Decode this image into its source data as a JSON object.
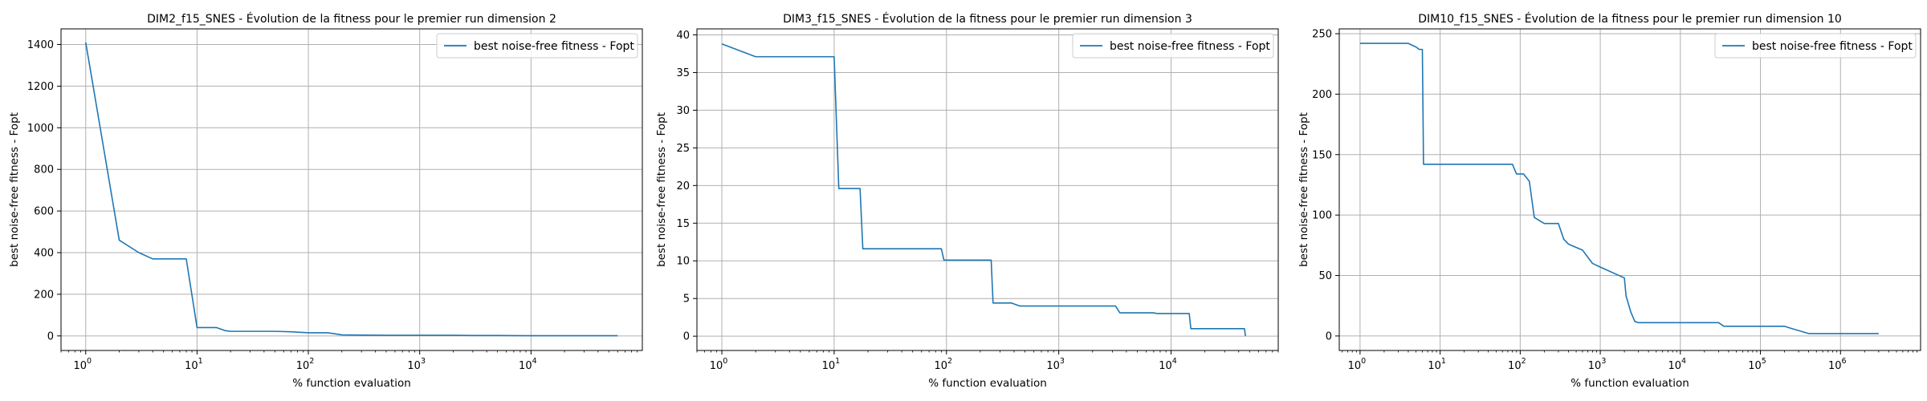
{
  "chart_data": [
    {
      "type": "line",
      "title": "DIM2_f15_SNES - Évolution de la fitness pour le premier run dimension 2",
      "xlabel": "% function evaluation",
      "ylabel": "best noise-free fitness - Fopt",
      "xscale": "log",
      "xlim": [
        0.6,
        100000
      ],
      "ylim": [
        -70,
        1475
      ],
      "xticks": [
        {
          "value": 1,
          "label": "10",
          "exp": "0"
        },
        {
          "value": 10,
          "label": "10",
          "exp": "1"
        },
        {
          "value": 100,
          "label": "10",
          "exp": "2"
        },
        {
          "value": 1000,
          "label": "10",
          "exp": "3"
        },
        {
          "value": 10000,
          "label": "10",
          "exp": "4"
        }
      ],
      "yticks": [
        {
          "value": 0,
          "label": "0"
        },
        {
          "value": 200,
          "label": "200"
        },
        {
          "value": 400,
          "label": "400"
        },
        {
          "value": 600,
          "label": "600"
        },
        {
          "value": 800,
          "label": "800"
        },
        {
          "value": 1000,
          "label": "1000"
        },
        {
          "value": 1200,
          "label": "1200"
        },
        {
          "value": 1400,
          "label": "1400"
        }
      ],
      "grid": true,
      "legend": "top-right",
      "series": [
        {
          "name": "best noise-free fitness - Fopt",
          "color": "#1f77b4",
          "x": [
            1,
            2,
            3,
            4,
            5,
            6,
            7,
            8,
            10,
            15,
            18,
            20,
            30,
            50,
            70,
            100,
            150,
            200,
            300,
            500,
            1000,
            2000,
            3000,
            5000,
            10000,
            20000,
            60000
          ],
          "y": [
            1410,
            460,
            400,
            370,
            370,
            370,
            370,
            370,
            40,
            40,
            25,
            22,
            22,
            22,
            20,
            15,
            15,
            5,
            4,
            3,
            3,
            3,
            2,
            2,
            1,
            1,
            1
          ]
        }
      ]
    },
    {
      "type": "line",
      "title": "DIM3_f15_SNES - Évolution de la fitness pour le premier run dimension 3",
      "xlabel": "% function evaluation",
      "ylabel": "best noise-free fitness - Fopt",
      "xscale": "log",
      "xlim": [
        0.6,
        90000
      ],
      "ylim": [
        -1.9,
        40.8
      ],
      "xticks": [
        {
          "value": 1,
          "label": "10",
          "exp": "0"
        },
        {
          "value": 10,
          "label": "10",
          "exp": "1"
        },
        {
          "value": 100,
          "label": "10",
          "exp": "2"
        },
        {
          "value": 1000,
          "label": "10",
          "exp": "3"
        },
        {
          "value": 10000,
          "label": "10",
          "exp": "4"
        }
      ],
      "yticks": [
        {
          "value": 0,
          "label": "0"
        },
        {
          "value": 5,
          "label": "5"
        },
        {
          "value": 10,
          "label": "10"
        },
        {
          "value": 15,
          "label": "15"
        },
        {
          "value": 20,
          "label": "20"
        },
        {
          "value": 25,
          "label": "25"
        },
        {
          "value": 30,
          "label": "30"
        },
        {
          "value": 35,
          "label": "35"
        },
        {
          "value": 40,
          "label": "40"
        }
      ],
      "grid": true,
      "legend": "top-right",
      "series": [
        {
          "name": "best noise-free fitness - Fopt",
          "color": "#1f77b4",
          "x": [
            1,
            2,
            5,
            10,
            11,
            17,
            18,
            90,
            95,
            250,
            260,
            380,
            450,
            3200,
            3500,
            7000,
            7500,
            14500,
            15000,
            45000,
            46000
          ],
          "y": [
            38.8,
            37.1,
            37.1,
            37.1,
            19.6,
            19.6,
            11.6,
            11.6,
            10.1,
            10.1,
            4.4,
            4.4,
            4.0,
            4.0,
            3.1,
            3.1,
            3.0,
            3.0,
            1.0,
            1.0,
            0.0
          ]
        }
      ]
    },
    {
      "type": "line",
      "title": "DIM10_f15_SNES - Évolution de la fitness pour le premier run dimension 10",
      "xlabel": "% function evaluation",
      "ylabel": "best noise-free fitness - Fopt",
      "xscale": "log",
      "xlim": [
        0.55,
        10000000
      ],
      "ylim": [
        -12,
        254
      ],
      "xticks": [
        {
          "value": 1,
          "label": "10",
          "exp": "0"
        },
        {
          "value": 10,
          "label": "10",
          "exp": "1"
        },
        {
          "value": 100,
          "label": "10",
          "exp": "2"
        },
        {
          "value": 1000,
          "label": "10",
          "exp": "3"
        },
        {
          "value": 10000,
          "label": "10",
          "exp": "4"
        },
        {
          "value": 100000,
          "label": "10",
          "exp": "5"
        },
        {
          "value": 1000000,
          "label": "10",
          "exp": "6"
        }
      ],
      "yticks": [
        {
          "value": 0,
          "label": "0"
        },
        {
          "value": 50,
          "label": "50"
        },
        {
          "value": 100,
          "label": "100"
        },
        {
          "value": 150,
          "label": "150"
        },
        {
          "value": 200,
          "label": "200"
        },
        {
          "value": 250,
          "label": "250"
        }
      ],
      "grid": true,
      "legend": "top-right",
      "series": [
        {
          "name": "best noise-free fitness - Fopt",
          "color": "#1f77b4",
          "x": [
            1,
            4,
            5,
            5.5,
            6,
            6.2,
            80,
            90,
            110,
            130,
            150,
            200,
            250,
            300,
            350,
            400,
            600,
            800,
            1000,
            2000,
            2100,
            2400,
            2700,
            3000,
            30000,
            35000,
            200000,
            250000,
            400000,
            3000000
          ],
          "y": [
            242,
            242,
            239,
            237,
            237,
            142,
            142,
            134,
            134,
            128,
            98,
            93,
            93,
            93,
            80,
            76,
            71,
            60,
            57,
            48,
            33,
            20,
            12,
            11,
            11,
            8,
            8,
            6,
            2,
            2
          ]
        }
      ]
    }
  ]
}
